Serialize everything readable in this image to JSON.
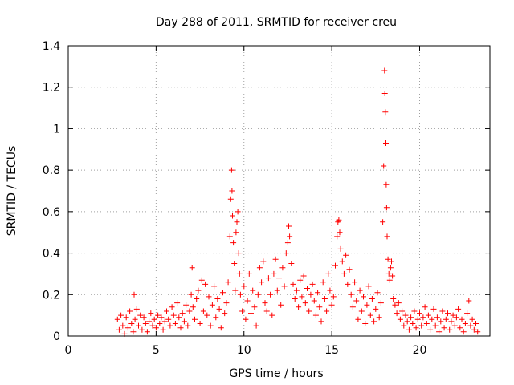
{
  "chart_data": {
    "type": "scatter",
    "title": "Day 288 of 2011, SRMTID for receiver creu",
    "xlabel": "GPS time / hours",
    "ylabel": "SRMTID / TECUs",
    "xlim": [
      0,
      24
    ],
    "ylim": [
      0,
      1.4
    ],
    "x_ticks": [
      0,
      5,
      10,
      15,
      20
    ],
    "x_tick_labels": [
      "0",
      "5",
      "10",
      "15",
      "20"
    ],
    "y_ticks": [
      0,
      0.2,
      0.4,
      0.6,
      0.8,
      1.0,
      1.2,
      1.4
    ],
    "y_tick_labels": [
      "0",
      "0.2",
      "0.4",
      "0.6",
      "0.8",
      "1",
      "1.2",
      "1.4"
    ],
    "grid": true,
    "marker": "+",
    "color": "#ff0000",
    "series": [
      {
        "name": "SRMTID",
        "points": [
          [
            2.8,
            0.08
          ],
          [
            2.9,
            0.03
          ],
          [
            3.0,
            0.1
          ],
          [
            3.1,
            0.05
          ],
          [
            3.2,
            0.01
          ],
          [
            3.3,
            0.09
          ],
          [
            3.4,
            0.04
          ],
          [
            3.5,
            0.12
          ],
          [
            3.6,
            0.06
          ],
          [
            3.7,
            0.02
          ],
          [
            3.75,
            0.2
          ],
          [
            3.8,
            0.08
          ],
          [
            3.9,
            0.13
          ],
          [
            4.0,
            0.05
          ],
          [
            4.1,
            0.1
          ],
          [
            4.2,
            0.03
          ],
          [
            4.3,
            0.09
          ],
          [
            4.4,
            0.06
          ],
          [
            4.5,
            0.02
          ],
          [
            4.6,
            0.07
          ],
          [
            4.7,
            0.11
          ],
          [
            4.8,
            0.05
          ],
          [
            4.9,
            0.08
          ],
          [
            5.0,
            0.04
          ],
          [
            5.1,
            0.1
          ],
          [
            5.2,
            0.06
          ],
          [
            5.3,
            0.09
          ],
          [
            5.4,
            0.03
          ],
          [
            5.5,
            0.07
          ],
          [
            5.6,
            0.12
          ],
          [
            5.7,
            0.08
          ],
          [
            5.8,
            0.05
          ],
          [
            5.9,
            0.14
          ],
          [
            6.0,
            0.1
          ],
          [
            6.1,
            0.06
          ],
          [
            6.2,
            0.16
          ],
          [
            6.3,
            0.09
          ],
          [
            6.4,
            0.04
          ],
          [
            6.5,
            0.11
          ],
          [
            6.6,
            0.07
          ],
          [
            6.7,
            0.15
          ],
          [
            6.8,
            0.05
          ],
          [
            6.9,
            0.12
          ],
          [
            7.0,
            0.2
          ],
          [
            7.05,
            0.33
          ],
          [
            7.1,
            0.14
          ],
          [
            7.2,
            0.08
          ],
          [
            7.3,
            0.18
          ],
          [
            7.4,
            0.22
          ],
          [
            7.5,
            0.06
          ],
          [
            7.6,
            0.27
          ],
          [
            7.7,
            0.12
          ],
          [
            7.8,
            0.25
          ],
          [
            7.9,
            0.1
          ],
          [
            8.0,
            0.19
          ],
          [
            8.1,
            0.05
          ],
          [
            8.2,
            0.15
          ],
          [
            8.3,
            0.24
          ],
          [
            8.4,
            0.09
          ],
          [
            8.5,
            0.18
          ],
          [
            8.6,
            0.13
          ],
          [
            8.7,
            0.04
          ],
          [
            8.8,
            0.21
          ],
          [
            8.9,
            0.11
          ],
          [
            9.0,
            0.16
          ],
          [
            9.1,
            0.26
          ],
          [
            9.2,
            0.48
          ],
          [
            9.25,
            0.66
          ],
          [
            9.3,
            0.8
          ],
          [
            9.32,
            0.7
          ],
          [
            9.35,
            0.58
          ],
          [
            9.4,
            0.45
          ],
          [
            9.45,
            0.35
          ],
          [
            9.5,
            0.22
          ],
          [
            9.55,
            0.5
          ],
          [
            9.6,
            0.55
          ],
          [
            9.65,
            0.6
          ],
          [
            9.7,
            0.4
          ],
          [
            9.75,
            0.3
          ],
          [
            9.8,
            0.2
          ],
          [
            9.9,
            0.12
          ],
          [
            10.0,
            0.24
          ],
          [
            10.1,
            0.08
          ],
          [
            10.2,
            0.17
          ],
          [
            10.3,
            0.3
          ],
          [
            10.4,
            0.11
          ],
          [
            10.5,
            0.22
          ],
          [
            10.6,
            0.14
          ],
          [
            10.7,
            0.05
          ],
          [
            10.8,
            0.2
          ],
          [
            10.9,
            0.33
          ],
          [
            11.0,
            0.26
          ],
          [
            11.1,
            0.36
          ],
          [
            11.2,
            0.16
          ],
          [
            11.3,
            0.12
          ],
          [
            11.4,
            0.28
          ],
          [
            11.5,
            0.2
          ],
          [
            11.6,
            0.1
          ],
          [
            11.7,
            0.3
          ],
          [
            11.8,
            0.37
          ],
          [
            11.9,
            0.22
          ],
          [
            12.0,
            0.28
          ],
          [
            12.1,
            0.15
          ],
          [
            12.2,
            0.33
          ],
          [
            12.3,
            0.24
          ],
          [
            12.4,
            0.4
          ],
          [
            12.5,
            0.45
          ],
          [
            12.55,
            0.53
          ],
          [
            12.6,
            0.48
          ],
          [
            12.7,
            0.35
          ],
          [
            12.8,
            0.25
          ],
          [
            12.9,
            0.18
          ],
          [
            13.0,
            0.22
          ],
          [
            13.1,
            0.14
          ],
          [
            13.2,
            0.27
          ],
          [
            13.3,
            0.19
          ],
          [
            13.4,
            0.29
          ],
          [
            13.5,
            0.16
          ],
          [
            13.6,
            0.23
          ],
          [
            13.7,
            0.12
          ],
          [
            13.8,
            0.2
          ],
          [
            13.9,
            0.25
          ],
          [
            14.0,
            0.17
          ],
          [
            14.1,
            0.1
          ],
          [
            14.2,
            0.21
          ],
          [
            14.3,
            0.14
          ],
          [
            14.4,
            0.07
          ],
          [
            14.5,
            0.26
          ],
          [
            14.6,
            0.18
          ],
          [
            14.7,
            0.12
          ],
          [
            14.8,
            0.3
          ],
          [
            14.9,
            0.22
          ],
          [
            15.0,
            0.15
          ],
          [
            15.1,
            0.19
          ],
          [
            15.2,
            0.34
          ],
          [
            15.3,
            0.48
          ],
          [
            15.35,
            0.55
          ],
          [
            15.4,
            0.56
          ],
          [
            15.45,
            0.5
          ],
          [
            15.5,
            0.42
          ],
          [
            15.6,
            0.36
          ],
          [
            15.7,
            0.3
          ],
          [
            15.8,
            0.39
          ],
          [
            15.9,
            0.25
          ],
          [
            16.0,
            0.32
          ],
          [
            16.1,
            0.2
          ],
          [
            16.2,
            0.14
          ],
          [
            16.3,
            0.26
          ],
          [
            16.4,
            0.17
          ],
          [
            16.5,
            0.08
          ],
          [
            16.6,
            0.22
          ],
          [
            16.7,
            0.12
          ],
          [
            16.8,
            0.19
          ],
          [
            16.9,
            0.06
          ],
          [
            17.0,
            0.15
          ],
          [
            17.1,
            0.24
          ],
          [
            17.2,
            0.1
          ],
          [
            17.3,
            0.18
          ],
          [
            17.4,
            0.07
          ],
          [
            17.5,
            0.13
          ],
          [
            17.6,
            0.21
          ],
          [
            17.7,
            0.09
          ],
          [
            17.8,
            0.16
          ],
          [
            17.9,
            0.55
          ],
          [
            17.95,
            0.82
          ],
          [
            18.0,
            1.28
          ],
          [
            18.02,
            1.17
          ],
          [
            18.05,
            1.08
          ],
          [
            18.08,
            0.93
          ],
          [
            18.1,
            0.73
          ],
          [
            18.12,
            0.62
          ],
          [
            18.15,
            0.48
          ],
          [
            18.2,
            0.37
          ],
          [
            18.25,
            0.3
          ],
          [
            18.3,
            0.27
          ],
          [
            18.35,
            0.33
          ],
          [
            18.4,
            0.36
          ],
          [
            18.45,
            0.29
          ],
          [
            18.5,
            0.18
          ],
          [
            18.6,
            0.15
          ],
          [
            18.7,
            0.11
          ],
          [
            18.8,
            0.16
          ],
          [
            18.9,
            0.08
          ],
          [
            19.0,
            0.12
          ],
          [
            19.1,
            0.05
          ],
          [
            19.2,
            0.1
          ],
          [
            19.3,
            0.07
          ],
          [
            19.4,
            0.03
          ],
          [
            19.5,
            0.09
          ],
          [
            19.6,
            0.06
          ],
          [
            19.7,
            0.12
          ],
          [
            19.8,
            0.04
          ],
          [
            19.9,
            0.08
          ],
          [
            20.0,
            0.11
          ],
          [
            20.1,
            0.05
          ],
          [
            20.2,
            0.09
          ],
          [
            20.3,
            0.14
          ],
          [
            20.4,
            0.06
          ],
          [
            20.5,
            0.1
          ],
          [
            20.6,
            0.03
          ],
          [
            20.7,
            0.08
          ],
          [
            20.8,
            0.13
          ],
          [
            20.9,
            0.05
          ],
          [
            21.0,
            0.09
          ],
          [
            21.1,
            0.02
          ],
          [
            21.2,
            0.07
          ],
          [
            21.3,
            0.12
          ],
          [
            21.4,
            0.04
          ],
          [
            21.5,
            0.08
          ],
          [
            21.6,
            0.11
          ],
          [
            21.7,
            0.03
          ],
          [
            21.8,
            0.07
          ],
          [
            21.9,
            0.1
          ],
          [
            22.0,
            0.05
          ],
          [
            22.1,
            0.09
          ],
          [
            22.2,
            0.13
          ],
          [
            22.3,
            0.04
          ],
          [
            22.4,
            0.08
          ],
          [
            22.5,
            0.02
          ],
          [
            22.6,
            0.06
          ],
          [
            22.7,
            0.11
          ],
          [
            22.8,
            0.17
          ],
          [
            22.9,
            0.05
          ],
          [
            23.0,
            0.08
          ],
          [
            23.1,
            0.03
          ],
          [
            23.2,
            0.06
          ],
          [
            23.3,
            0.02
          ]
        ]
      }
    ]
  }
}
